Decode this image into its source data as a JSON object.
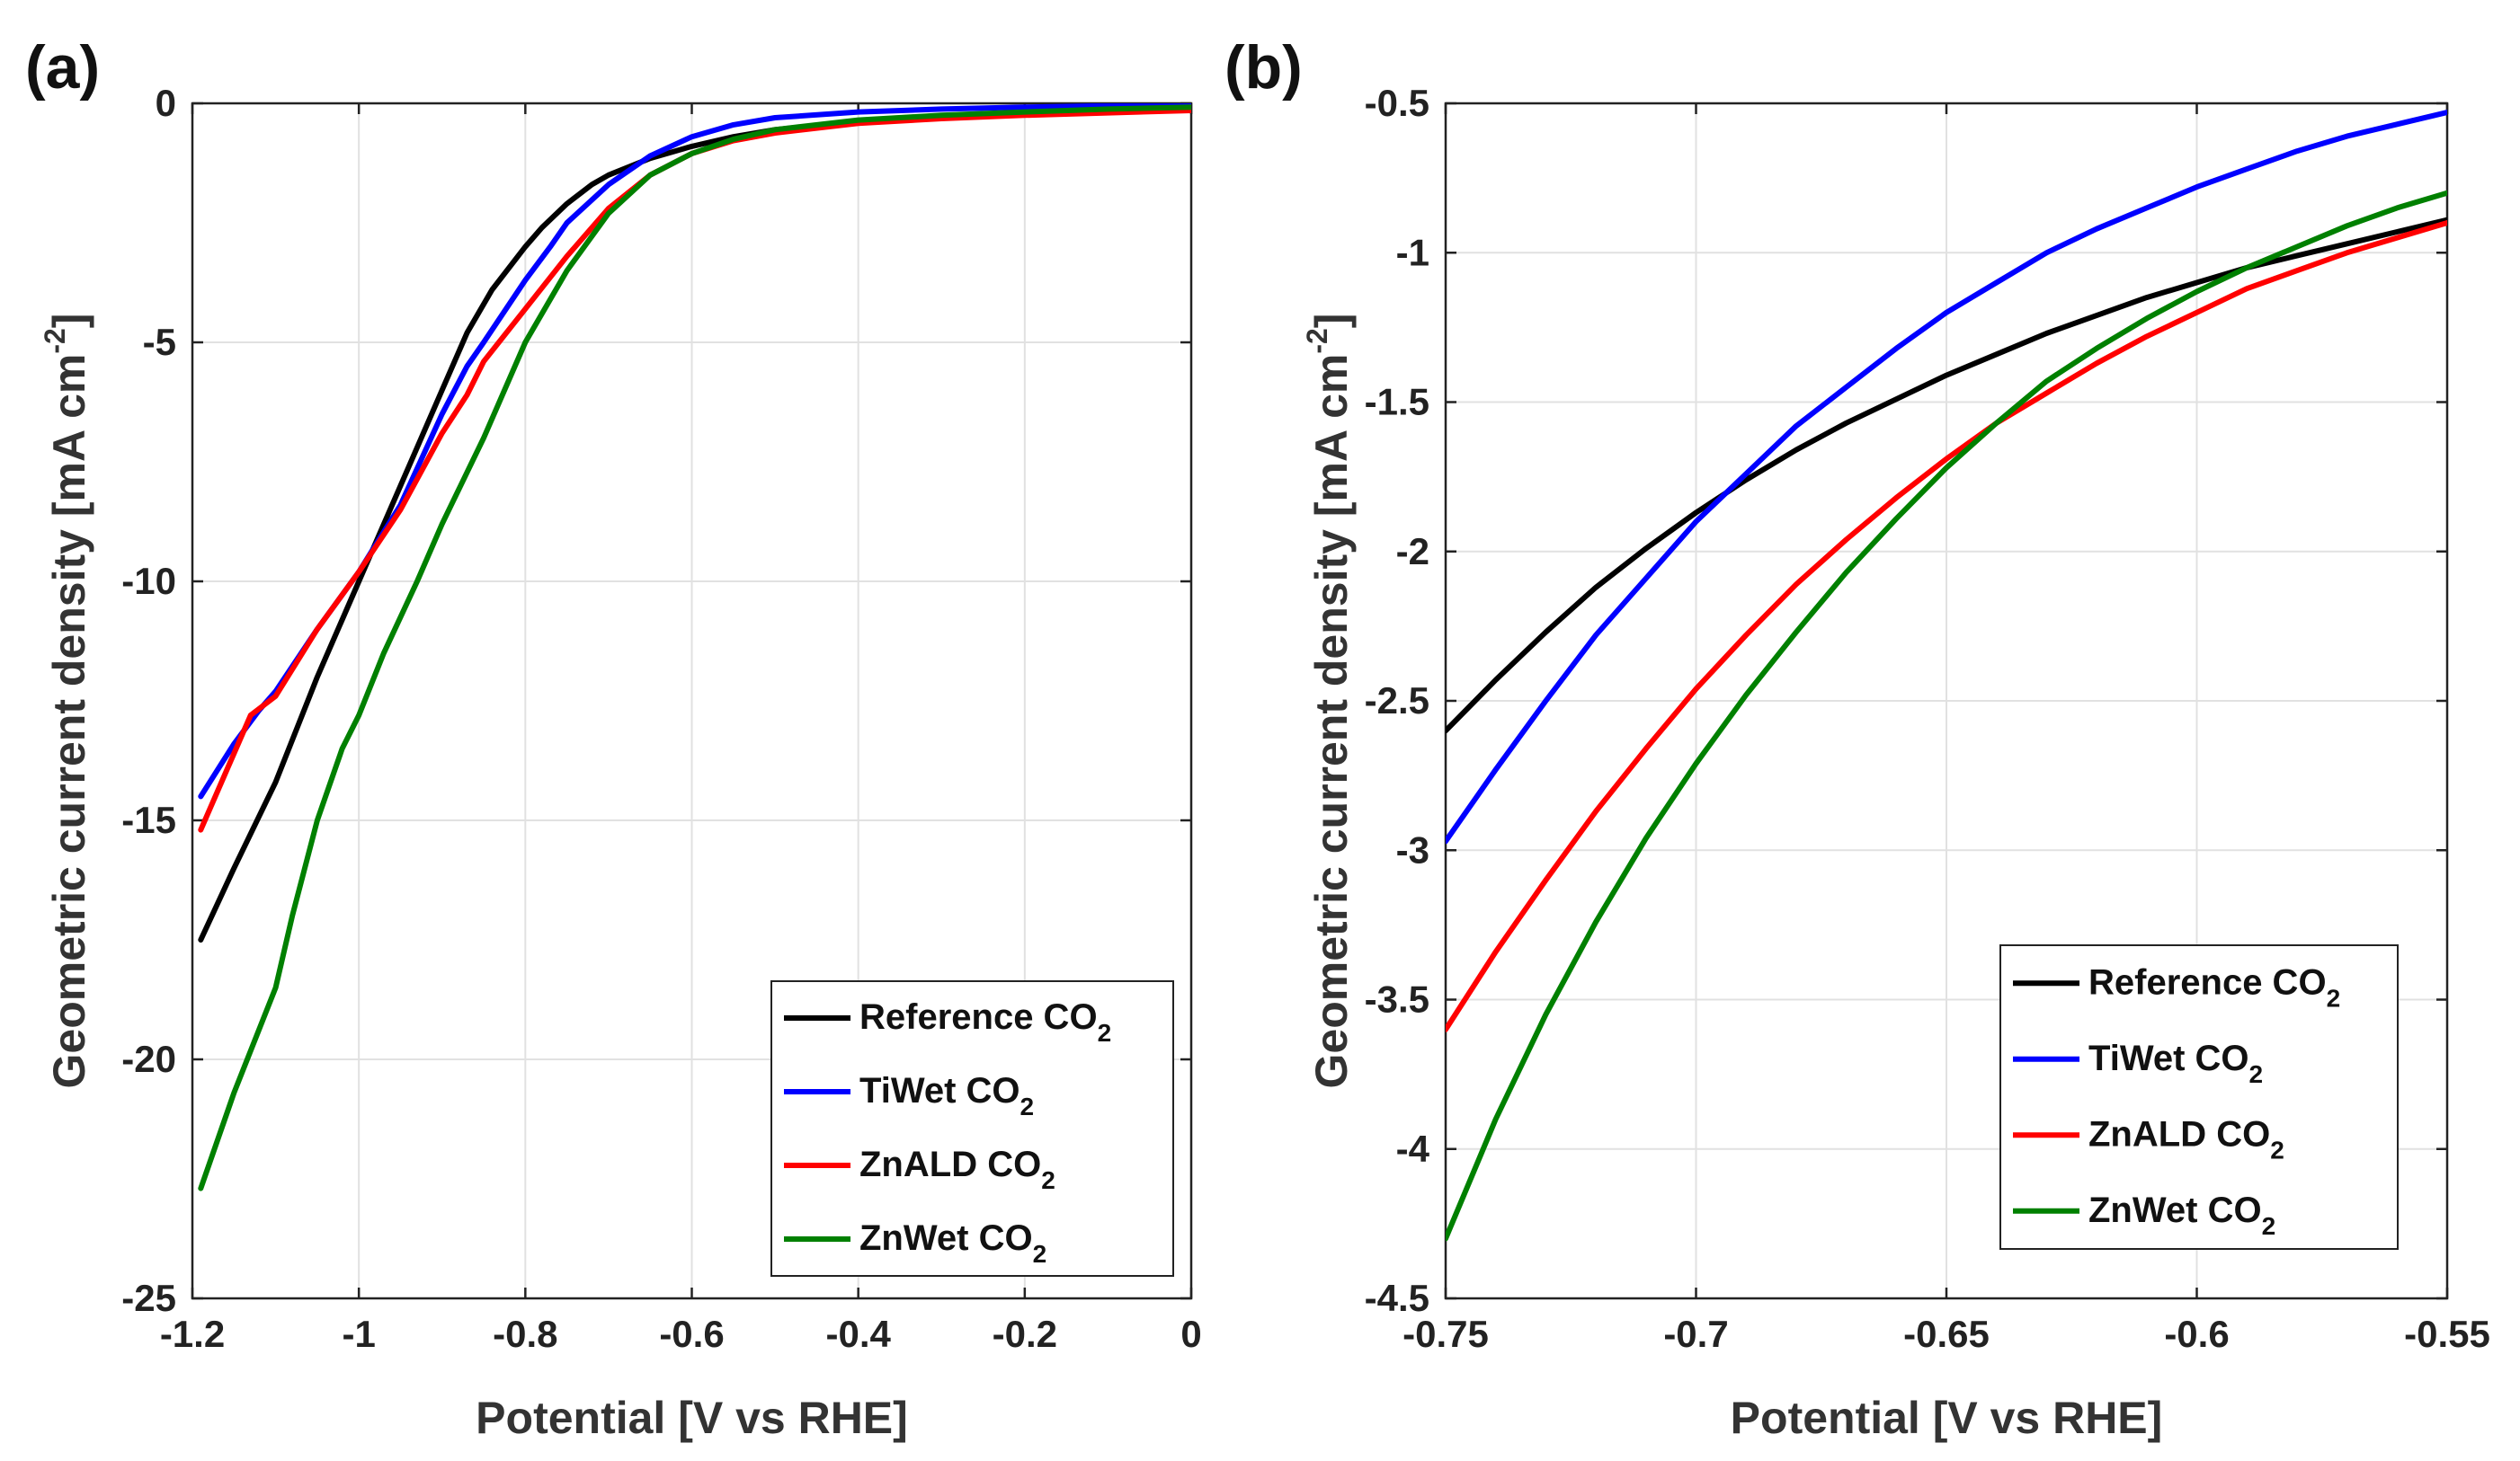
{
  "chart_data": [
    {
      "type": "line",
      "panel_label": "(a)",
      "title": "",
      "xlabel": "Potential [V vs RHE]",
      "ylabel_main": "Geometric current density [mA cm",
      "ylabel_sup": "-2",
      "ylabel_end": "]",
      "xlim": [
        -1.2,
        0
      ],
      "ylim": [
        -25,
        0
      ],
      "xticks": [
        -1.2,
        -1,
        -0.8,
        -0.6,
        -0.4,
        -0.2,
        0
      ],
      "xtick_labels": [
        "-1.2",
        "-1",
        "-0.8",
        "-0.6",
        "-0.4",
        "-0.2",
        "0"
      ],
      "yticks": [
        0,
        -5,
        -10,
        -15,
        -20,
        -25
      ],
      "ytick_labels": [
        "0",
        "-5",
        "-10",
        "-15",
        "-20",
        "-25"
      ],
      "grid": true,
      "legend_position": "bottom-right",
      "series": [
        {
          "name": "Reference CO",
          "sub": "2",
          "color": "#000000",
          "x": [
            -1.19,
            -1.15,
            -1.1,
            -1.05,
            -1.0,
            -0.95,
            -0.9,
            -0.87,
            -0.84,
            -0.8,
            -0.78,
            -0.75,
            -0.72,
            -0.7,
            -0.65,
            -0.6,
            -0.55,
            -0.5,
            -0.4,
            -0.3,
            -0.2,
            -0.1,
            0
          ],
          "y": [
            -17.5,
            -16.0,
            -14.2,
            -12.0,
            -10.0,
            -8.0,
            -6.0,
            -4.8,
            -3.9,
            -3.0,
            -2.6,
            -2.1,
            -1.7,
            -1.5,
            -1.15,
            -0.9,
            -0.7,
            -0.55,
            -0.38,
            -0.3,
            -0.22,
            -0.15,
            -0.1
          ]
        },
        {
          "name": "TiWet CO",
          "sub": "2",
          "color": "#0000ff",
          "x": [
            -1.19,
            -1.15,
            -1.12,
            -1.1,
            -1.05,
            -1.0,
            -0.95,
            -0.9,
            -0.87,
            -0.85,
            -0.8,
            -0.77,
            -0.75,
            -0.7,
            -0.65,
            -0.6,
            -0.55,
            -0.5,
            -0.4,
            -0.3,
            -0.2,
            -0.1,
            0
          ],
          "y": [
            -14.5,
            -13.4,
            -12.7,
            -12.3,
            -11.0,
            -9.8,
            -8.4,
            -6.5,
            -5.5,
            -5.0,
            -3.7,
            -3.0,
            -2.5,
            -1.7,
            -1.1,
            -0.7,
            -0.45,
            -0.3,
            -0.18,
            -0.12,
            -0.08,
            -0.05,
            -0.03
          ]
        },
        {
          "name": "ZnALD CO",
          "sub": "2",
          "color": "#ff0000",
          "x": [
            -1.19,
            -1.15,
            -1.13,
            -1.1,
            -1.05,
            -1.0,
            -0.95,
            -0.9,
            -0.87,
            -0.85,
            -0.8,
            -0.75,
            -0.7,
            -0.65,
            -0.6,
            -0.55,
            -0.5,
            -0.4,
            -0.3,
            -0.2,
            -0.1,
            0
          ],
          "y": [
            -15.2,
            -13.6,
            -12.8,
            -12.4,
            -11.0,
            -9.8,
            -8.5,
            -6.9,
            -6.1,
            -5.4,
            -4.3,
            -3.2,
            -2.2,
            -1.5,
            -1.05,
            -0.78,
            -0.62,
            -0.42,
            -0.32,
            -0.25,
            -0.2,
            -0.15
          ]
        },
        {
          "name": "ZnWet CO",
          "sub": "2",
          "color": "#008000",
          "x": [
            -1.19,
            -1.15,
            -1.1,
            -1.08,
            -1.05,
            -1.02,
            -1.0,
            -0.97,
            -0.93,
            -0.9,
            -0.85,
            -0.8,
            -0.75,
            -0.7,
            -0.65,
            -0.6,
            -0.55,
            -0.5,
            -0.4,
            -0.3,
            -0.2,
            -0.1,
            0
          ],
          "y": [
            -22.7,
            -20.7,
            -18.5,
            -17.0,
            -15.0,
            -13.5,
            -12.8,
            -11.5,
            -10.0,
            -8.8,
            -7.0,
            -5.0,
            -3.5,
            -2.3,
            -1.5,
            -1.05,
            -0.75,
            -0.55,
            -0.35,
            -0.25,
            -0.18,
            -0.12,
            -0.08
          ]
        }
      ]
    },
    {
      "type": "line",
      "panel_label": "(b)",
      "title": "",
      "xlabel": "Potential [V vs RHE]",
      "ylabel_main": "Geometric current density [mA cm",
      "ylabel_sup": "-2",
      "ylabel_end": "]",
      "xlim": [
        -0.75,
        -0.55
      ],
      "ylim": [
        -4.5,
        -0.5
      ],
      "xticks": [
        -0.75,
        -0.7,
        -0.65,
        -0.6,
        -0.55
      ],
      "xtick_labels": [
        "-0.75",
        "-0.7",
        "-0.65",
        "-0.6",
        "-0.55"
      ],
      "yticks": [
        -0.5,
        -1,
        -1.5,
        -2,
        -2.5,
        -3,
        -3.5,
        -4,
        -4.5
      ],
      "ytick_labels": [
        "-0.5",
        "-1",
        "-1.5",
        "-2",
        "-2.5",
        "-3",
        "-3.5",
        "-4",
        "-4.5"
      ],
      "grid": true,
      "legend_position": "bottom-right",
      "series": [
        {
          "name": "Reference CO",
          "sub": "2",
          "color": "#000000",
          "x": [
            -0.75,
            -0.74,
            -0.73,
            -0.72,
            -0.71,
            -0.7,
            -0.69,
            -0.68,
            -0.67,
            -0.66,
            -0.65,
            -0.64,
            -0.63,
            -0.62,
            -0.61,
            -0.6,
            -0.59,
            -0.58,
            -0.57,
            -0.56,
            -0.55
          ],
          "y": [
            -2.6,
            -2.43,
            -2.27,
            -2.12,
            -1.99,
            -1.87,
            -1.76,
            -1.66,
            -1.57,
            -1.49,
            -1.41,
            -1.34,
            -1.27,
            -1.21,
            -1.15,
            -1.1,
            -1.05,
            -1.01,
            -0.97,
            -0.93,
            -0.89
          ]
        },
        {
          "name": "TiWet CO",
          "sub": "2",
          "color": "#0000ff",
          "x": [
            -0.75,
            -0.74,
            -0.73,
            -0.72,
            -0.71,
            -0.7,
            -0.69,
            -0.68,
            -0.67,
            -0.66,
            -0.65,
            -0.64,
            -0.63,
            -0.62,
            -0.61,
            -0.6,
            -0.59,
            -0.58,
            -0.57,
            -0.56,
            -0.55
          ],
          "y": [
            -2.97,
            -2.73,
            -2.5,
            -2.28,
            -2.09,
            -1.9,
            -1.74,
            -1.58,
            -1.45,
            -1.32,
            -1.2,
            -1.1,
            -1.0,
            -0.92,
            -0.85,
            -0.78,
            -0.72,
            -0.66,
            -0.61,
            -0.57,
            -0.53
          ]
        },
        {
          "name": "ZnALD CO",
          "sub": "2",
          "color": "#ff0000",
          "x": [
            -0.75,
            -0.74,
            -0.73,
            -0.72,
            -0.71,
            -0.7,
            -0.69,
            -0.68,
            -0.67,
            -0.66,
            -0.65,
            -0.64,
            -0.63,
            -0.62,
            -0.61,
            -0.6,
            -0.59,
            -0.58,
            -0.57,
            -0.56,
            -0.55
          ],
          "y": [
            -3.6,
            -3.34,
            -3.1,
            -2.87,
            -2.66,
            -2.46,
            -2.28,
            -2.11,
            -1.96,
            -1.82,
            -1.69,
            -1.57,
            -1.47,
            -1.37,
            -1.28,
            -1.2,
            -1.12,
            -1.06,
            -1.0,
            -0.95,
            -0.9
          ]
        },
        {
          "name": "ZnWet CO",
          "sub": "2",
          "color": "#008000",
          "x": [
            -0.75,
            -0.74,
            -0.73,
            -0.72,
            -0.71,
            -0.7,
            -0.69,
            -0.68,
            -0.67,
            -0.66,
            -0.65,
            -0.64,
            -0.63,
            -0.62,
            -0.61,
            -0.6,
            -0.59,
            -0.58,
            -0.57,
            -0.56,
            -0.55
          ],
          "y": [
            -4.3,
            -3.9,
            -3.55,
            -3.24,
            -2.96,
            -2.71,
            -2.48,
            -2.27,
            -2.07,
            -1.89,
            -1.72,
            -1.57,
            -1.43,
            -1.32,
            -1.22,
            -1.13,
            -1.05,
            -0.98,
            -0.91,
            -0.85,
            -0.8
          ]
        }
      ]
    }
  ]
}
